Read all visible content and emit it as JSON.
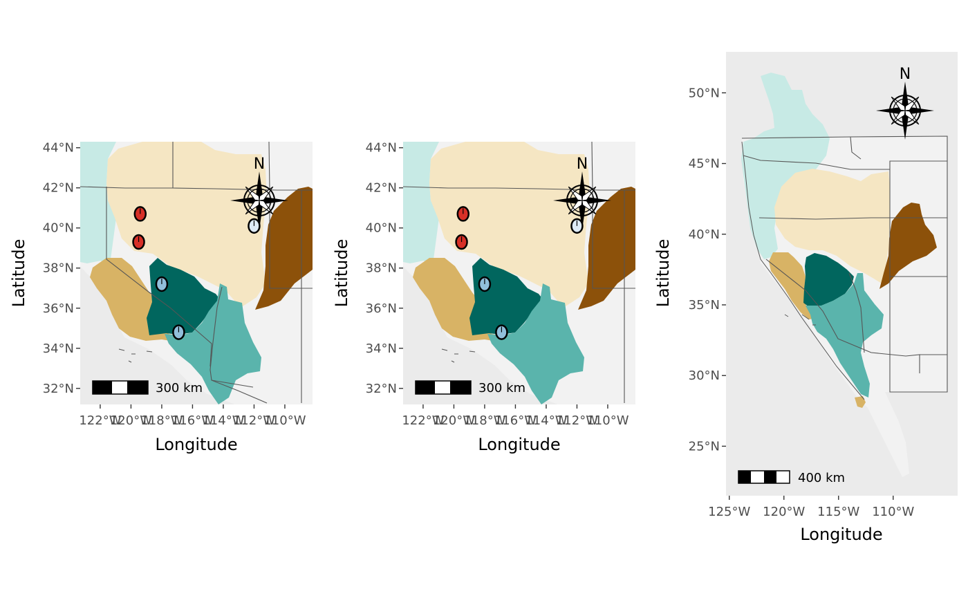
{
  "figure": {
    "colors": {
      "panel_bg": "#ebebeb",
      "land": "#f2f2f2",
      "light_teal": "#c7eae5",
      "wheat": "#f5e6c3",
      "tan": "#d8b365",
      "dark_teal": "#01665e",
      "mid_teal": "#5ab4ac",
      "brown": "#8c510a",
      "red": "#d73027",
      "light_blue": "#deebf7",
      "steel_blue": "#91bfdb"
    },
    "icons": {
      "compass": "north-arrow-compass-rose-icon",
      "scale": "scale-bar-icon",
      "sample": "pie-chart-sample-marker-icon"
    }
  },
  "panels": [
    {
      "x_label": "Longitude",
      "y_label": "Latitude",
      "x_ticks": [
        "122°W",
        "120°W",
        "118°W",
        "116°W",
        "114°W",
        "112°W",
        "110°W"
      ],
      "x_tick_values": [
        -122,
        -120,
        -118,
        -116,
        -114,
        -112,
        -110
      ],
      "y_ticks": [
        "32°N",
        "34°N",
        "36°N",
        "38°N",
        "40°N",
        "42°N",
        "44°N"
      ],
      "y_tick_values": [
        32,
        34,
        36,
        38,
        40,
        42,
        44
      ],
      "xlim": [
        -123.3,
        -108.2
      ],
      "ylim": [
        31.2,
        44.3
      ],
      "north_label": "N",
      "scale_label": "300 km",
      "samples": [
        {
          "lon": -119.4,
          "lat": 40.7,
          "color": "red"
        },
        {
          "lon": -119.5,
          "lat": 39.3,
          "color": "red"
        },
        {
          "lon": -118.0,
          "lat": 37.2,
          "color": "steel_blue"
        },
        {
          "lon": -116.9,
          "lat": 34.8,
          "color": "steel_blue"
        },
        {
          "lon": -112.0,
          "lat": 40.1,
          "color": "light_blue"
        }
      ]
    },
    {
      "x_label": "Longitude",
      "y_label": "Latitude",
      "x_ticks": [
        "122°W",
        "120°W",
        "118°W",
        "116°W",
        "114°W",
        "112°W",
        "110°W"
      ],
      "x_tick_values": [
        -122,
        -120,
        -118,
        -116,
        -114,
        -112,
        -110
      ],
      "y_ticks": [
        "32°N",
        "34°N",
        "36°N",
        "38°N",
        "40°N",
        "42°N",
        "44°N"
      ],
      "y_tick_values": [
        32,
        34,
        36,
        38,
        40,
        42,
        44
      ],
      "xlim": [
        -123.3,
        -108.2
      ],
      "ylim": [
        31.2,
        44.3
      ],
      "north_label": "N",
      "scale_label": "300 km",
      "samples": [
        {
          "lon": -119.4,
          "lat": 40.7,
          "color": "red"
        },
        {
          "lon": -119.5,
          "lat": 39.3,
          "color": "red"
        },
        {
          "lon": -118.0,
          "lat": 37.2,
          "color": "steel_blue"
        },
        {
          "lon": -116.9,
          "lat": 34.8,
          "color": "steel_blue"
        },
        {
          "lon": -112.0,
          "lat": 40.1,
          "color": "light_blue"
        }
      ]
    },
    {
      "x_label": "Longitude",
      "y_label": "Latitude",
      "x_ticks": [
        "125°W",
        "120°W",
        "115°W",
        "110°W"
      ],
      "x_tick_values": [
        -125,
        -120,
        -115,
        -110
      ],
      "y_ticks": [
        "25°N",
        "30°N",
        "35°N",
        "40°N",
        "45°N",
        "50°N"
      ],
      "y_tick_values": [
        25,
        30,
        35,
        40,
        45,
        50
      ],
      "xlim": [
        -125.3,
        -104.1
      ],
      "ylim": [
        21.5,
        52.9
      ],
      "north_label": "N",
      "scale_label": "400 km",
      "samples": []
    }
  ]
}
